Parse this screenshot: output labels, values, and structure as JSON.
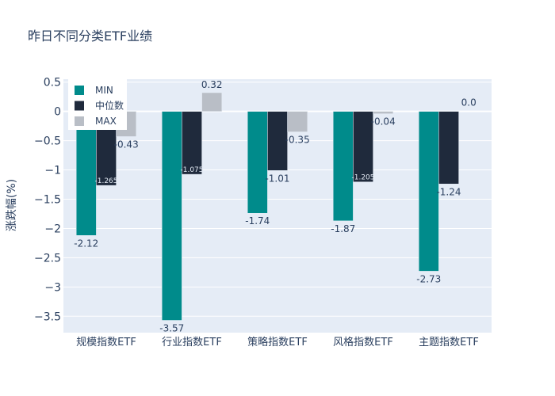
{
  "chart_data": {
    "type": "bar",
    "title": "昨日不同分类ETF业绩",
    "xlabel": "",
    "ylabel": "涨跌幅(%)",
    "categories": [
      "规模指数ETF",
      "行业指数ETF",
      "策略指数ETF",
      "风格指数ETF",
      "主题指数ETF"
    ],
    "series": [
      {
        "name": "MIN",
        "values": [
          -2.12,
          -3.57,
          -1.74,
          -1.87,
          -2.73
        ],
        "labels": [
          "-2.12",
          "-3.57",
          "-1.74",
          "-1.87",
          "-2.73"
        ],
        "color": "#008b8b"
      },
      {
        "name": "中位数",
        "values": [
          -1.265,
          -1.075,
          -1.01,
          -1.205,
          -1.24
        ],
        "labels": [
          "-1.265",
          "-1.075",
          "-1.01",
          "-1.205",
          "-1.24"
        ],
        "color": "#1f2a3c"
      },
      {
        "name": "MAX",
        "values": [
          -0.43,
          0.32,
          -0.35,
          -0.04,
          0.0
        ],
        "labels": [
          "-0.43",
          "0.32",
          "-0.35",
          "-0.04",
          "0.0"
        ],
        "color": "#b9bec6"
      }
    ],
    "ylim": [
      -3.78,
      0.55
    ],
    "yticks": [
      0.5,
      0,
      -0.5,
      -1,
      -1.5,
      -2,
      -2.5,
      -3,
      -3.5
    ],
    "ytick_labels": [
      "0.5",
      "0",
      "−0.5",
      "−1",
      "−1.5",
      "−2",
      "−2.5",
      "−3",
      "−3.5"
    ],
    "grid": true,
    "legend_position": "top-left",
    "plot_bg": "#e5ecf6",
    "text_color": "#2a3f5f"
  }
}
